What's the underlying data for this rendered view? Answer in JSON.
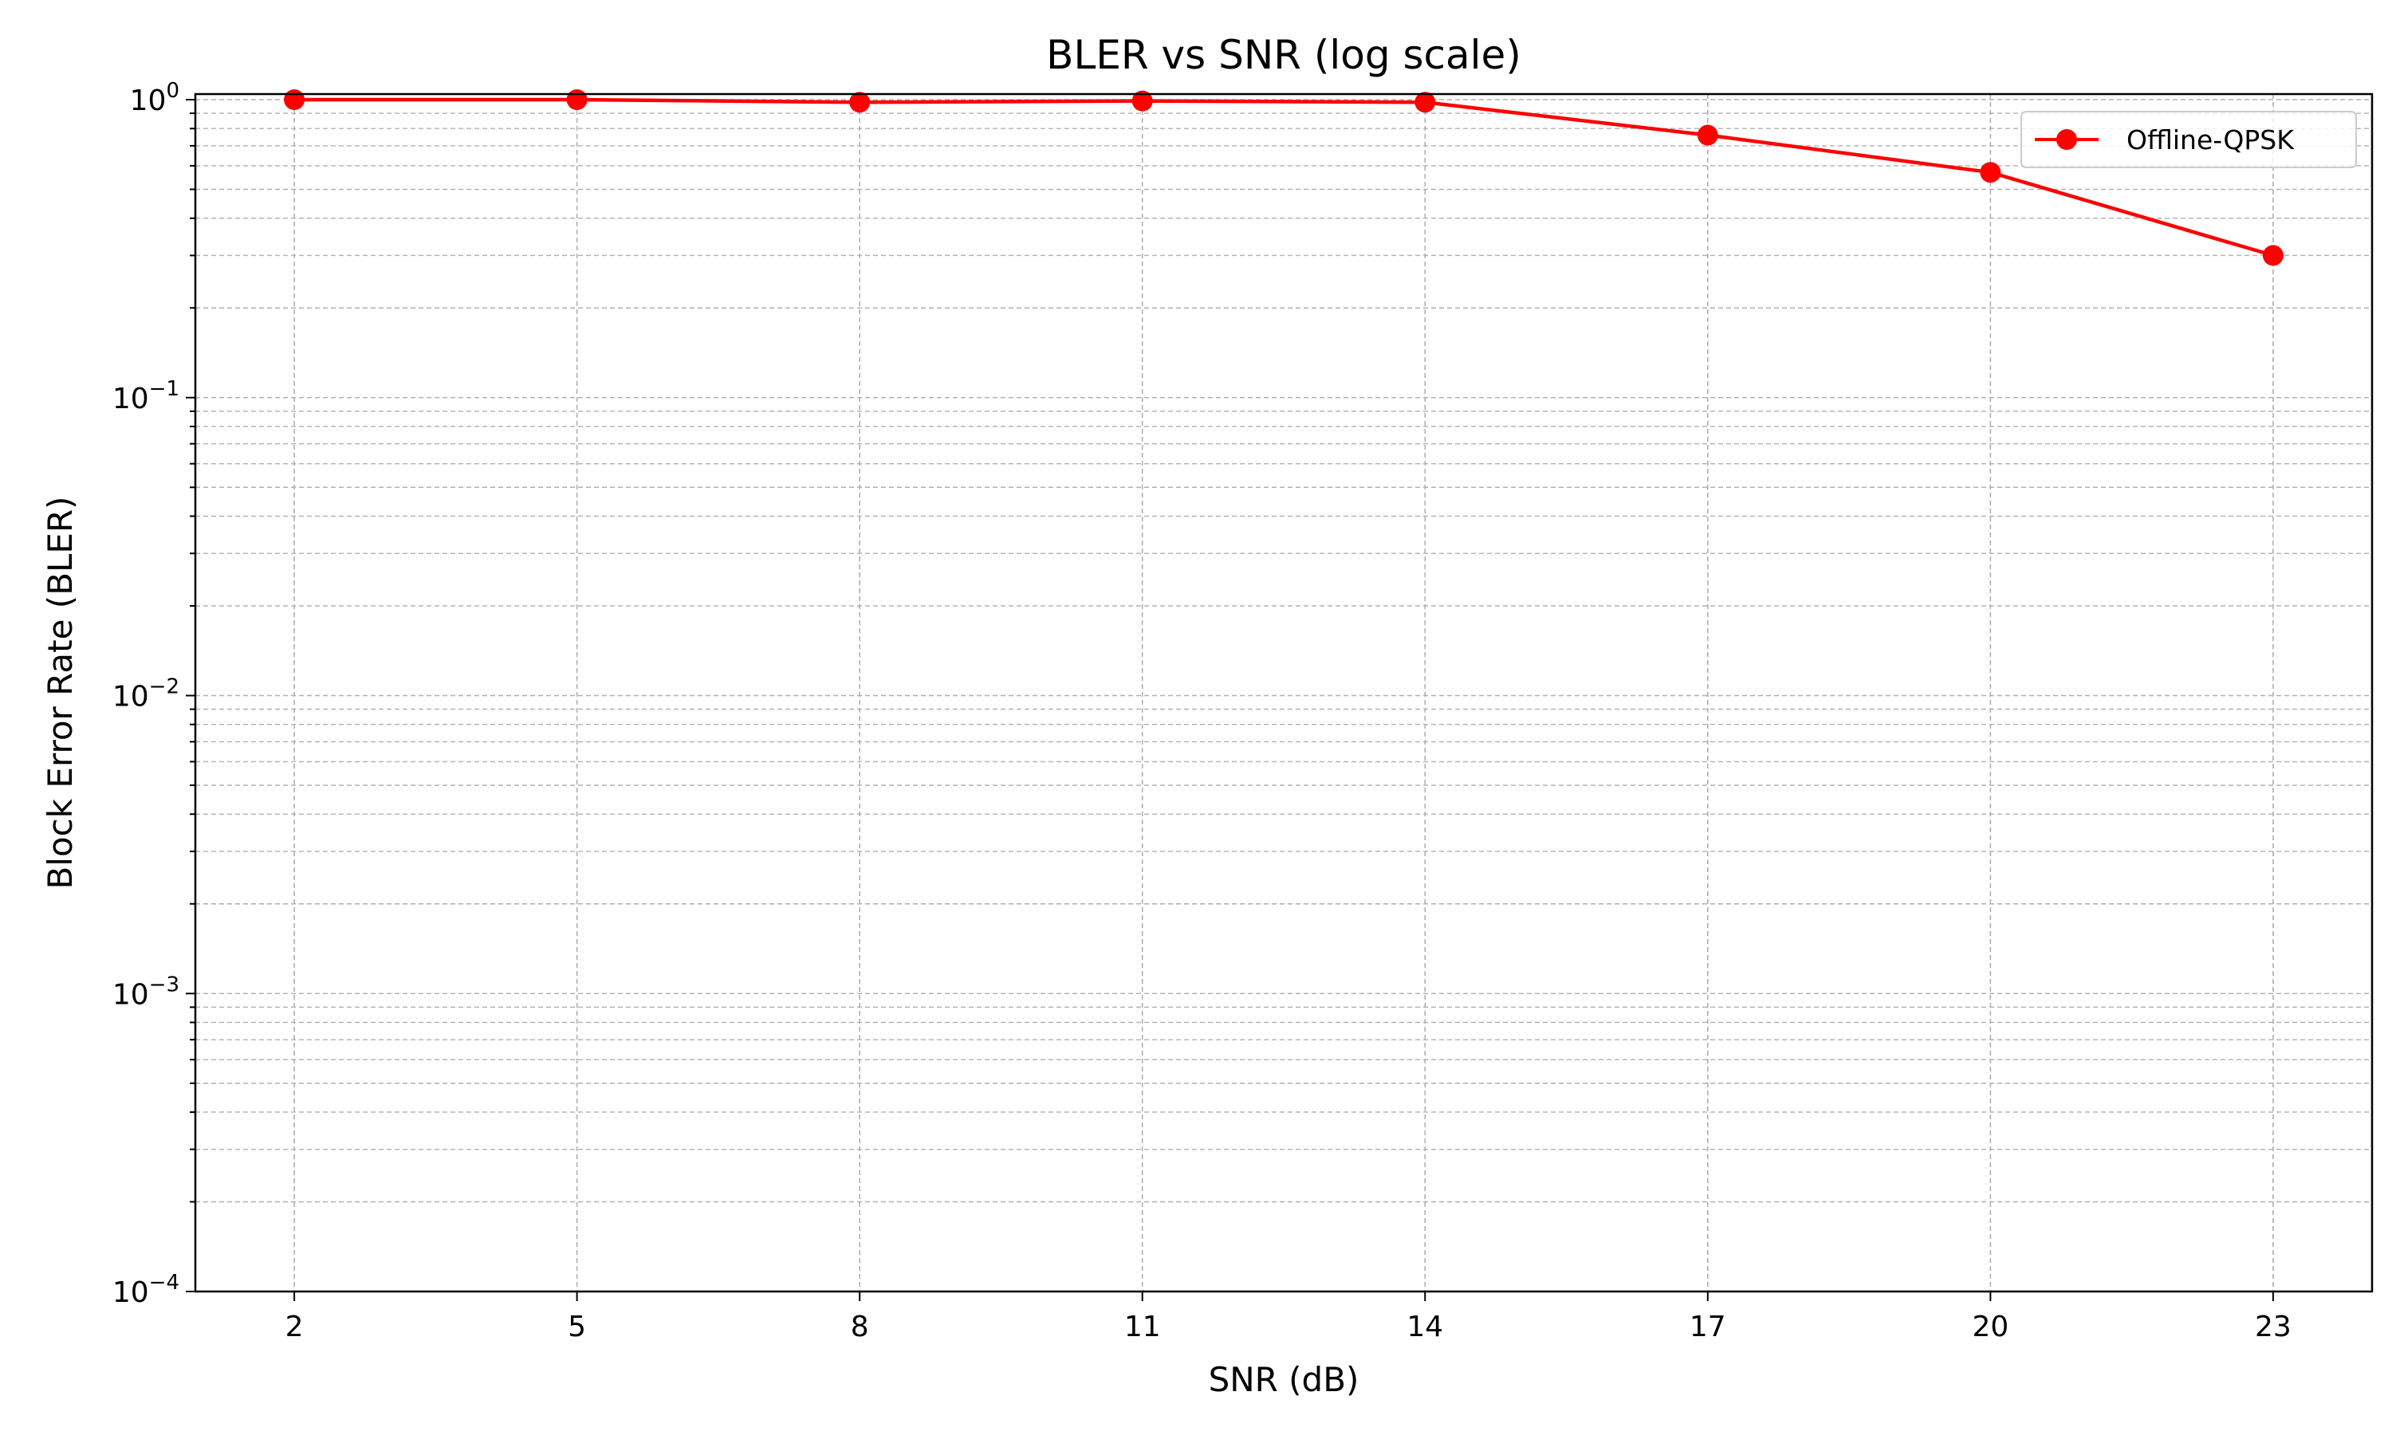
{
  "chart_data": {
    "type": "line",
    "title": "BLER vs SNR (log scale)",
    "xlabel": "SNR (dB)",
    "ylabel": "Block Error Rate (BLER)",
    "x": [
      2,
      5,
      8,
      11,
      14,
      17,
      20,
      23
    ],
    "x_tick_labels": [
      "2",
      "5",
      "8",
      "11",
      "14",
      "17",
      "20",
      "23"
    ],
    "yscale": "log",
    "ylim": [
      0.0001,
      1.05
    ],
    "y_ticks": [
      {
        "base": "10",
        "exp": "0",
        "value": 1
      },
      {
        "base": "10",
        "exp": "−1",
        "value": 0.1
      },
      {
        "base": "10",
        "exp": "−2",
        "value": 0.01
      },
      {
        "base": "10",
        "exp": "−3",
        "value": 0.001
      },
      {
        "base": "10",
        "exp": "−4",
        "value": 0.0001
      }
    ],
    "grid": true,
    "legend_position": "top-right",
    "series": [
      {
        "name": "Offline-QPSK",
        "color": "#ff0000",
        "marker": "circle",
        "values": [
          1.0,
          1.0,
          0.98,
          0.99,
          0.98,
          0.76,
          0.57,
          0.3
        ]
      }
    ]
  }
}
